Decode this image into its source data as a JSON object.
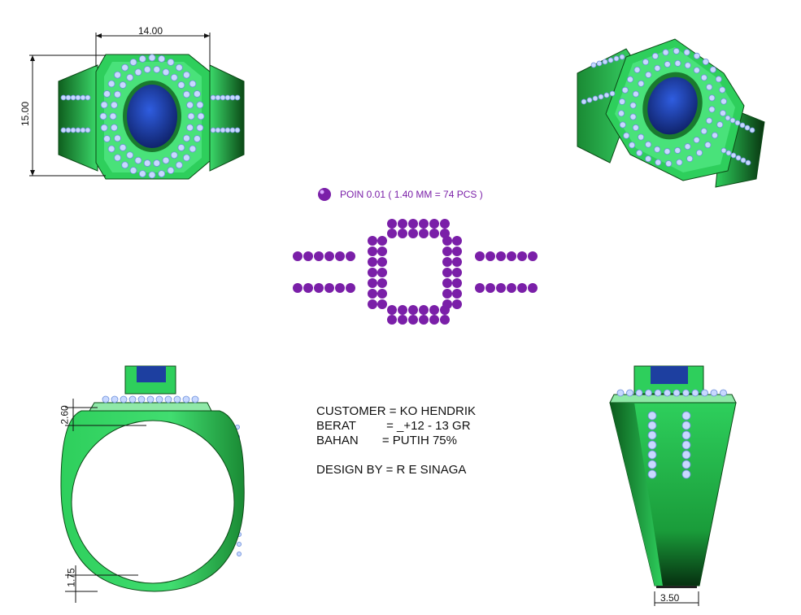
{
  "dimensions": {
    "top_width": "14.00",
    "top_height": "15.00",
    "side_top": "2.60",
    "side_bottom": "1.75",
    "back_width": "3.50"
  },
  "legend": {
    "label": "POIN 0.01 ( 1.40 MM = 74 PCS )"
  },
  "info": {
    "customer": "CUSTOMER = KO HENDRIK",
    "berat": "BERAT         = _+12 - 13 GR",
    "bahan": "BAHAN       = PUTIH 75%",
    "design": "DESIGN BY = R E SINAGA"
  },
  "colors": {
    "metal": "#22c55e",
    "metal_dark": "#0f5f1e",
    "stone": "#1d3fa0",
    "diamond": "#c8d8ff",
    "poin": "#7a1fa8"
  }
}
